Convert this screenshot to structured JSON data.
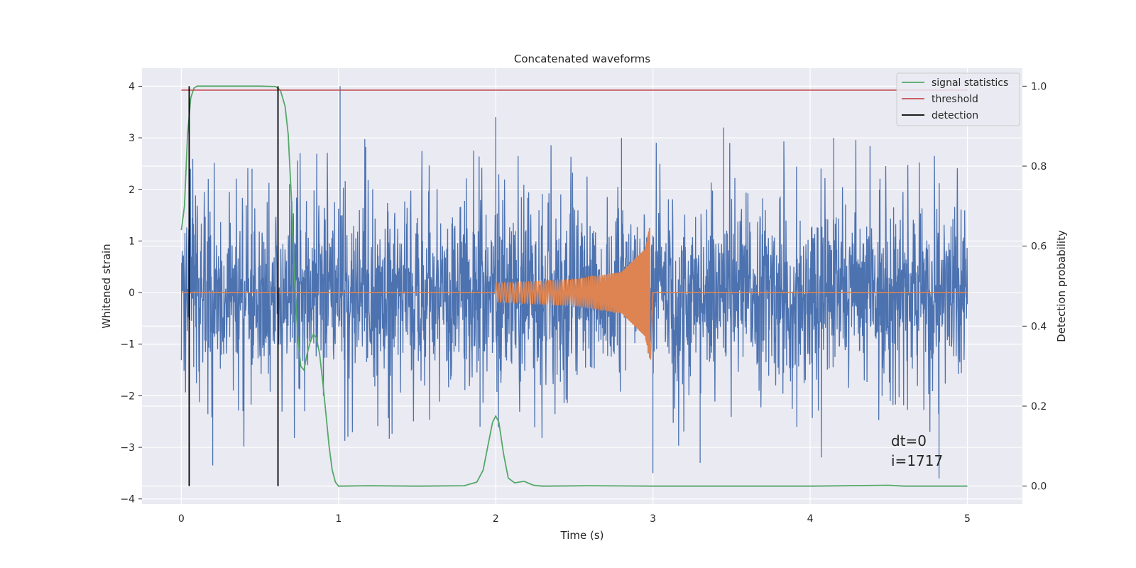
{
  "chart_data": {
    "type": "line",
    "title": "Concatenated waveforms",
    "xlabel": "Time (s)",
    "ylabel": "Whitened strain",
    "y2label": "Detection probability",
    "xlim": [
      -0.25,
      5.35
    ],
    "ylim": [
      -4.1,
      4.35
    ],
    "y2lim": [
      -0.045,
      1.045
    ],
    "xticks": [
      0,
      1,
      2,
      3,
      4,
      5
    ],
    "xtick_labels": [
      "0",
      "1",
      "2",
      "3",
      "4",
      "5"
    ],
    "yticks": [
      4,
      3,
      2,
      1,
      0,
      -1,
      -2,
      -3,
      -4
    ],
    "ytick_labels": [
      "4",
      "3",
      "2",
      "1",
      "0",
      "−1",
      "−2",
      "−3",
      "−4"
    ],
    "y2ticks": [
      1.0,
      0.8,
      0.6,
      0.4,
      0.2,
      0.0
    ],
    "y2tick_labels": [
      "1.0",
      "0.8",
      "0.6",
      "0.4",
      "0.2",
      "0.0"
    ],
    "grid": true,
    "legend_position": "top-right",
    "legend": [
      "signal statistics",
      "threshold",
      "detection"
    ],
    "annotations": [
      "dt=0",
      "i=1717"
    ],
    "colors": {
      "noise": "#4c72b0",
      "injection": "#dd8452",
      "signal_statistics": "#55a868",
      "threshold": "#c44e52",
      "detection": "#000000",
      "background": "#eaeaf2",
      "grid": "#ffffff"
    },
    "series": [
      {
        "name": "signal statistics",
        "axis": "right",
        "x": [
          0.0,
          0.02,
          0.04,
          0.06,
          0.08,
          0.1,
          0.15,
          0.3,
          0.5,
          0.6,
          0.63,
          0.66,
          0.68,
          0.7,
          0.72,
          0.74,
          0.76,
          0.78,
          0.8,
          0.82,
          0.84,
          0.86,
          0.88,
          0.9,
          0.92,
          0.94,
          0.96,
          0.98,
          1.0,
          1.2,
          1.5,
          1.8,
          1.88,
          1.92,
          1.95,
          1.98,
          2.0,
          2.02,
          2.05,
          2.08,
          2.12,
          2.18,
          2.24,
          2.3,
          2.6,
          3.0,
          3.5,
          4.0,
          4.5,
          4.6,
          5.0
        ],
        "y": [
          0.64,
          0.7,
          0.88,
          0.97,
          0.995,
          1.0,
          1.0,
          1.0,
          1.0,
          0.999,
          0.99,
          0.95,
          0.88,
          0.72,
          0.52,
          0.38,
          0.3,
          0.29,
          0.33,
          0.36,
          0.38,
          0.37,
          0.33,
          0.26,
          0.18,
          0.1,
          0.04,
          0.01,
          0.0,
          0.001,
          0.0,
          0.001,
          0.01,
          0.04,
          0.1,
          0.16,
          0.175,
          0.16,
          0.08,
          0.02,
          0.008,
          0.012,
          0.002,
          0.0,
          0.001,
          0.0,
          0.0,
          0.0,
          0.002,
          0.0,
          0.0
        ]
      },
      {
        "name": "threshold",
        "axis": "right",
        "x": [
          0.0,
          5.0
        ],
        "y": [
          0.99,
          0.99
        ]
      },
      {
        "name": "detection",
        "axis": "right",
        "x": [
          0.05,
          0.615
        ],
        "y": [
          1.0,
          1.0
        ]
      },
      {
        "name": "",
        "axis": "left",
        "x": [
          0.0,
          5.0
        ],
        "y_envelope_upper": [
          1.5,
          2.3
        ],
        "y_envelope_lower": [
          -1.8,
          -2.5
        ],
        "y_peak_max": 4.0,
        "y_peak_min": -3.6
      },
      {
        "name": "",
        "axis": "left",
        "x": [
          2.0,
          2.5,
          2.8,
          2.95,
          2.98,
          3.0
        ],
        "y_amplitude": [
          0.18,
          0.25,
          0.4,
          0.85,
          1.3,
          0.0
        ]
      }
    ]
  }
}
